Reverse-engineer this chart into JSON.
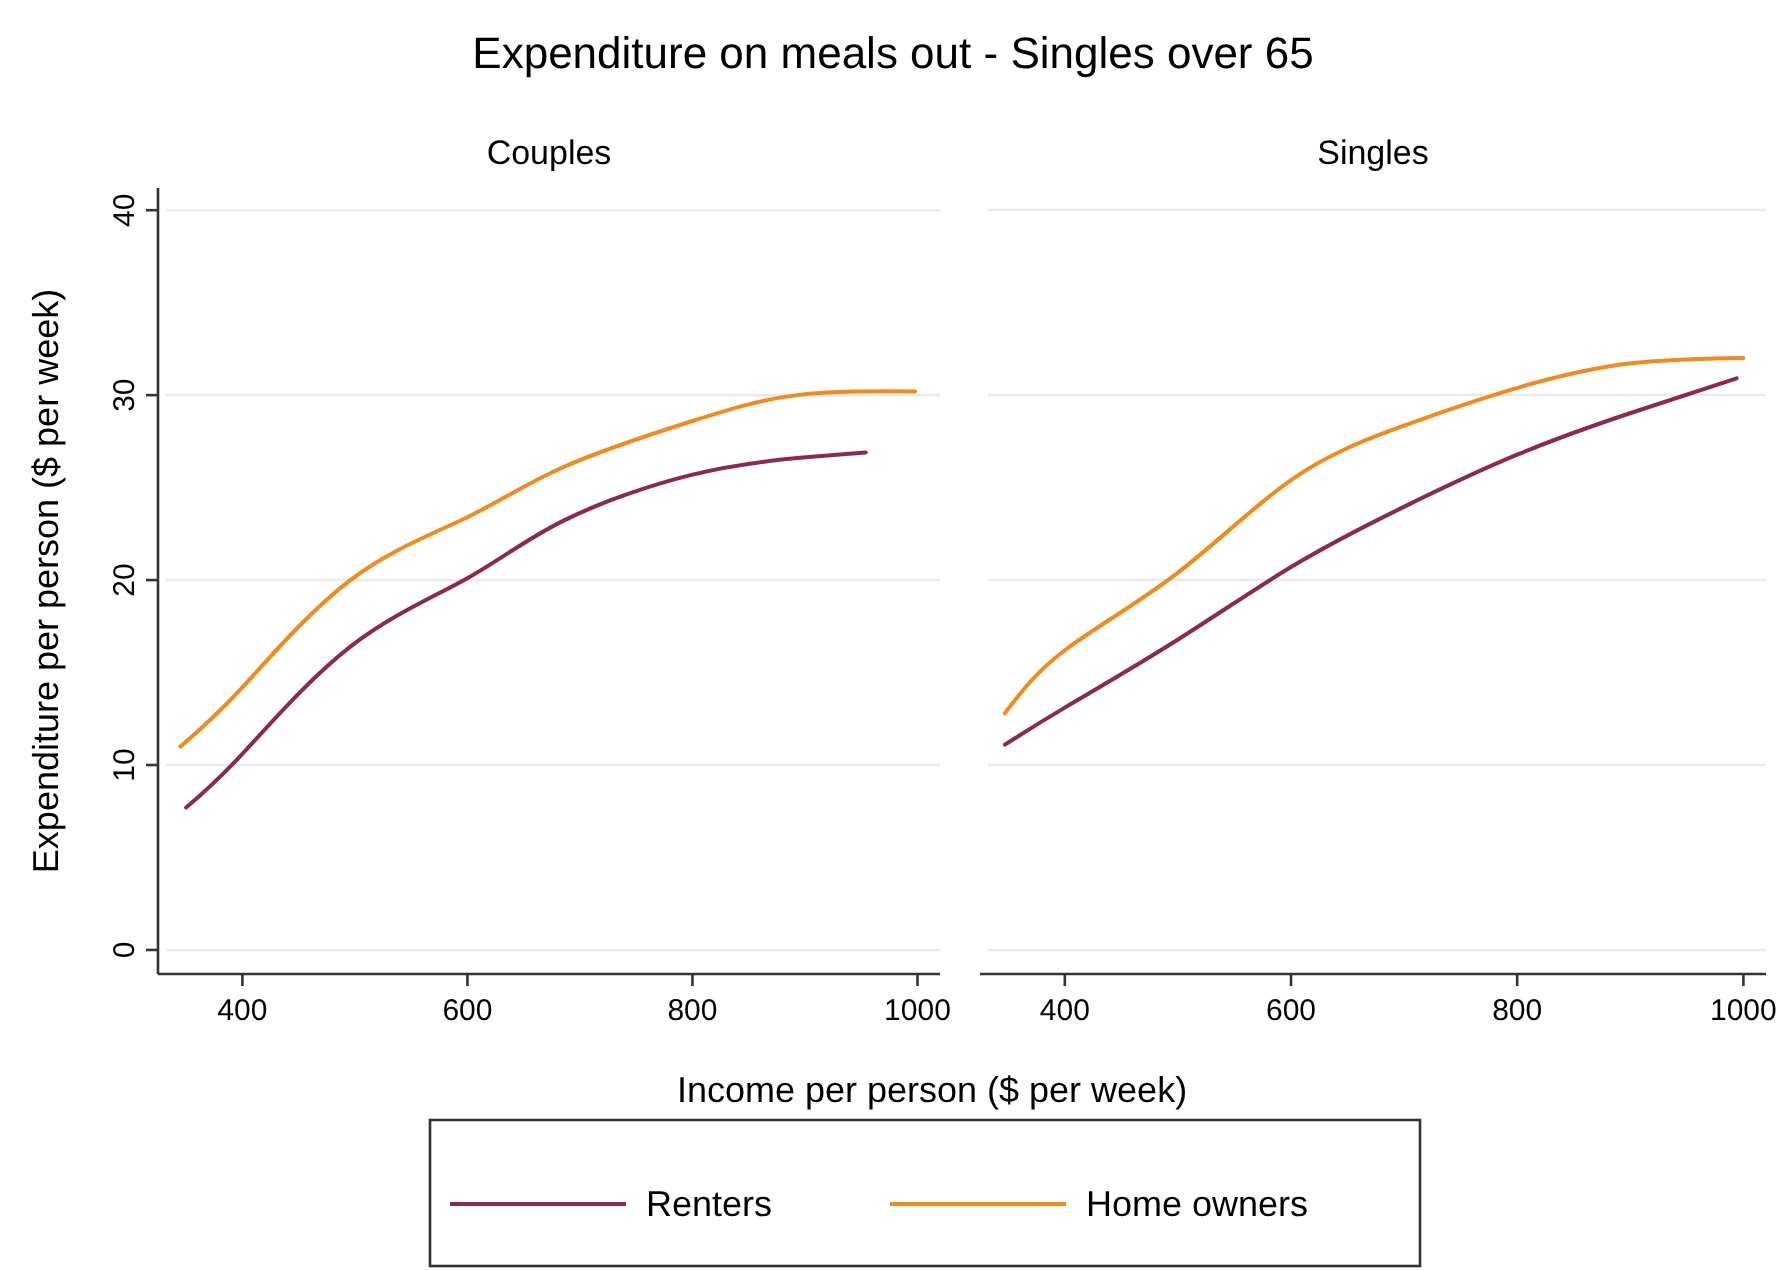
{
  "chart_data": [
    {
      "type": "line",
      "title": "Expenditure on meals out - Singles over 65",
      "subtitle": "Couples",
      "xlabel": "Income per person ($ per week)",
      "ylabel": "Expenditure per person ($ per week)",
      "xlim": [
        325,
        1020
      ],
      "ylim": [
        -1.3,
        41.2
      ],
      "xticks": [
        400,
        600,
        800,
        1000
      ],
      "yticks": [
        0,
        10,
        20,
        30,
        40
      ],
      "grid": "y",
      "legend": "bottom",
      "series": [
        {
          "name": "Renters",
          "color": "#8b2a4e",
          "x": [
            350,
            400,
            496,
            600,
            685,
            800,
            893,
            954
          ],
          "values": [
            7.7,
            10.6,
            16.4,
            20.1,
            23.2,
            25.7,
            26.6,
            26.9
          ]
        },
        {
          "name": "Home owners",
          "color": "#f28b1e",
          "x": [
            345,
            400,
            496,
            600,
            685,
            800,
            893,
            998
          ],
          "values": [
            11.0,
            14.2,
            20.0,
            23.4,
            26.1,
            28.6,
            30.0,
            30.2
          ]
        }
      ]
    },
    {
      "type": "line",
      "subtitle": "Singles",
      "xlim": [
        325,
        1020
      ],
      "ylim": [
        -1.3,
        40
      ],
      "xticks": [
        400,
        600,
        800,
        1000
      ],
      "yticks": [
        0,
        10,
        20,
        30,
        40
      ],
      "grid": "y",
      "tick_labels": "x",
      "series": [
        {
          "color": "#8b2a4e",
          "x": [
            347,
            400,
            498,
            600,
            698,
            801,
            899,
            994
          ],
          "values": [
            11.1,
            13.1,
            16.7,
            20.7,
            23.9,
            26.8,
            29.0,
            30.9
          ]
        },
        {
          "color": "#f28b1e",
          "x": [
            347,
            400,
            498,
            600,
            698,
            801,
            899,
            1000
          ],
          "values": [
            12.8,
            16.2,
            20.3,
            25.4,
            28.3,
            30.4,
            31.7,
            32.0
          ]
        }
      ]
    }
  ]
}
